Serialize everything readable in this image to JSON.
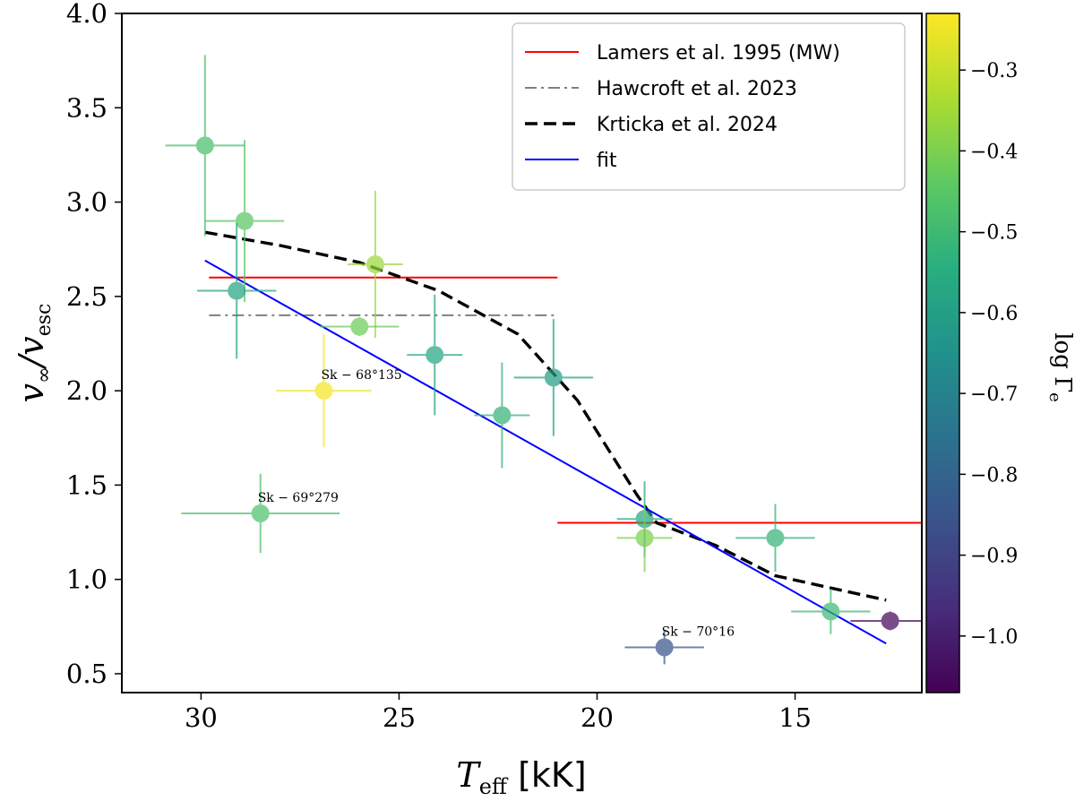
{
  "chart_data": {
    "type": "scatter",
    "xlabel": "T_eff [kK]",
    "ylabel": "v∞/v_esc",
    "xlim": [
      32,
      11.8
    ],
    "ylim": [
      0.4,
      4.0
    ],
    "x_ticks": [
      30,
      25,
      20,
      15
    ],
    "y_ticks": [
      0.5,
      1.0,
      1.5,
      2.0,
      2.5,
      3.0,
      3.5,
      4.0
    ],
    "x_tick_labels": [
      "30",
      "25",
      "20",
      "15"
    ],
    "y_tick_labels": [
      "0.5",
      "1.0",
      "1.5",
      "2.0",
      "2.5",
      "3.0",
      "3.5",
      "4.0"
    ],
    "legend_position": "top-right",
    "grid": false,
    "lines": [
      {
        "name": "Lamers et al. 1995 (MW)",
        "color": "#ff0000",
        "style": "solid",
        "segments": [
          {
            "x": [
              29.8,
              21.0
            ],
            "y": [
              2.6,
              2.6
            ]
          },
          {
            "x": [
              21.0,
              11.8
            ],
            "y": [
              1.3,
              1.3
            ]
          }
        ]
      },
      {
        "name": "Hawcroft et al. 2023",
        "color": "#808080",
        "style": "dashdot",
        "segments": [
          {
            "x": [
              29.8,
              21.0
            ],
            "y": [
              2.4,
              2.4
            ]
          }
        ]
      },
      {
        "name": "Krticka et al. 2024",
        "color": "#000000",
        "style": "dashed",
        "segments": [
          {
            "x": [
              29.9,
              28.0,
              26.0,
              24.0,
              22.0,
              20.5,
              19.0,
              18.5,
              17.0,
              15.5,
              14.0,
              12.7
            ],
            "y": [
              2.84,
              2.77,
              2.68,
              2.53,
              2.3,
              1.95,
              1.45,
              1.3,
              1.18,
              1.02,
              0.95,
              0.89
            ]
          }
        ]
      },
      {
        "name": "fit",
        "color": "#0000ff",
        "style": "solid",
        "segments": [
          {
            "x": [
              29.9,
              12.7
            ],
            "y": [
              2.69,
              0.66
            ]
          }
        ]
      }
    ],
    "points": [
      {
        "x": 29.9,
        "y": 3.3,
        "xerr": 1.0,
        "yerr": 0.48,
        "log_gamma_e": -0.48
      },
      {
        "x": 28.9,
        "y": 2.9,
        "xerr": 1.0,
        "yerr": 0.43,
        "log_gamma_e": -0.45
      },
      {
        "x": 29.1,
        "y": 2.53,
        "xerr": 1.0,
        "yerr": 0.36,
        "log_gamma_e": -0.58
      },
      {
        "x": 25.6,
        "y": 2.67,
        "xerr": 0.7,
        "yerr": 0.39,
        "log_gamma_e": -0.36
      },
      {
        "x": 26.0,
        "y": 2.34,
        "xerr": 1.0,
        "yerr": 0.05,
        "log_gamma_e": -0.42
      },
      {
        "x": 26.9,
        "y": 2.0,
        "xerr": 1.2,
        "yerr": 0.3,
        "log_gamma_e": -0.24,
        "label": "Sk − 68°135"
      },
      {
        "x": 24.1,
        "y": 2.19,
        "xerr": 0.7,
        "yerr": 0.32,
        "log_gamma_e": -0.57
      },
      {
        "x": 22.4,
        "y": 1.87,
        "xerr": 0.7,
        "yerr": 0.28,
        "log_gamma_e": -0.52
      },
      {
        "x": 21.1,
        "y": 2.07,
        "xerr": 1.0,
        "yerr": 0.31,
        "log_gamma_e": -0.6
      },
      {
        "x": 28.5,
        "y": 1.35,
        "xerr": 2.0,
        "yerr": 0.21,
        "log_gamma_e": -0.47,
        "label": "Sk − 69°279"
      },
      {
        "x": 18.8,
        "y": 1.32,
        "xerr": 0.7,
        "yerr": 0.2,
        "log_gamma_e": -0.57
      },
      {
        "x": 18.8,
        "y": 1.22,
        "xerr": 0.7,
        "yerr": 0.18,
        "log_gamma_e": -0.4
      },
      {
        "x": 15.5,
        "y": 1.22,
        "xerr": 1.0,
        "yerr": 0.18,
        "log_gamma_e": -0.52
      },
      {
        "x": 14.1,
        "y": 0.83,
        "xerr": 1.0,
        "yerr": 0.12,
        "log_gamma_e": -0.5
      },
      {
        "x": 18.3,
        "y": 0.64,
        "xerr": 1.0,
        "yerr": 0.09,
        "log_gamma_e": -0.85,
        "label": "Sk − 70°16"
      },
      {
        "x": 12.6,
        "y": 0.78,
        "xerr": 1.0,
        "yerr": 0.05,
        "log_gamma_e": -1.05
      }
    ],
    "colorbar": {
      "label": "log Γe",
      "range": [
        -1.07,
        -0.23
      ],
      "ticks": [
        -0.3,
        -0.4,
        -0.5,
        -0.6,
        -0.7,
        -0.8,
        -0.9,
        -1.0
      ],
      "tick_labels": [
        "−0.3",
        "−0.4",
        "−0.5",
        "−0.6",
        "−0.7",
        "−0.8",
        "−0.9",
        "−1.0"
      ],
      "colormap": "viridis"
    }
  }
}
